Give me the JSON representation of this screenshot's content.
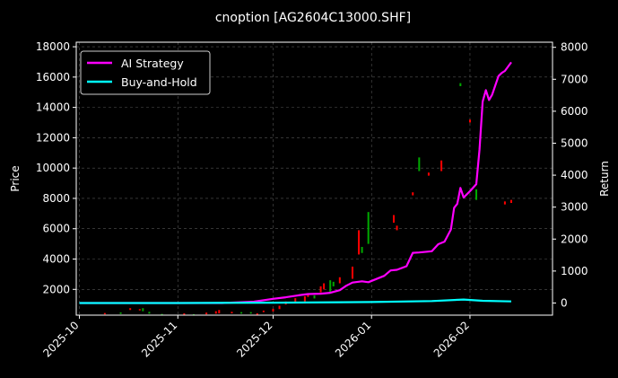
{
  "chart_data": {
    "type": "line",
    "title": "cnoption [AG2604C13000.SHF]",
    "ylabel_left": "Price",
    "ylabel_right": "Return",
    "x_ticks": [
      "2025-10",
      "2025-11",
      "2025-12",
      "2026-01",
      "2026-02"
    ],
    "x_range": [
      "2025-09-30",
      "2026-02-27"
    ],
    "left_axis": {
      "ylim": [
        300,
        18300
      ],
      "ticks": [
        2000,
        4000,
        6000,
        8000,
        10000,
        12000,
        14000,
        16000,
        18000
      ]
    },
    "right_axis": {
      "ylim": [
        -380,
        8160
      ],
      "ticks": [
        0,
        1000,
        2000,
        3000,
        4000,
        5000,
        6000,
        7000,
        8000
      ]
    },
    "grid": true,
    "legend_position": "top-left",
    "colors": {
      "background": "#000000",
      "ai_strategy": "#ff00ff",
      "buy_hold": "#00ffff",
      "up": "#ff0000",
      "down": "#00aa00"
    },
    "series": [
      {
        "name": "AI Strategy",
        "axis": "right",
        "points": [
          [
            "2025-10-01",
            0
          ],
          [
            "2025-10-15",
            0
          ],
          [
            "2025-11-01",
            0
          ],
          [
            "2025-11-15",
            0
          ],
          [
            "2025-11-25",
            40
          ],
          [
            "2025-12-01",
            130
          ],
          [
            "2025-12-05",
            180
          ],
          [
            "2025-12-09",
            240
          ],
          [
            "2025-12-12",
            280
          ],
          [
            "2025-12-16",
            290
          ],
          [
            "2025-12-19",
            320
          ],
          [
            "2025-12-22",
            400
          ],
          [
            "2025-12-24",
            540
          ],
          [
            "2025-12-26",
            640
          ],
          [
            "2025-12-29",
            680
          ],
          [
            "2025-12-31",
            650
          ],
          [
            "2026-01-05",
            850
          ],
          [
            "2026-01-07",
            1020
          ],
          [
            "2026-01-09",
            1040
          ],
          [
            "2026-01-12",
            1150
          ],
          [
            "2026-01-14",
            1570
          ],
          [
            "2026-01-16",
            1580
          ],
          [
            "2026-01-20",
            1620
          ],
          [
            "2026-01-22",
            1840
          ],
          [
            "2026-01-24",
            1920
          ],
          [
            "2026-01-26",
            2300
          ],
          [
            "2026-01-27",
            2980
          ],
          [
            "2026-01-28",
            3100
          ],
          [
            "2026-01-29",
            3600
          ],
          [
            "2026-01-30",
            3300
          ],
          [
            "2026-02-01",
            3500
          ],
          [
            "2026-02-03",
            3720
          ],
          [
            "2026-02-04",
            4800
          ],
          [
            "2026-02-05",
            6300
          ],
          [
            "2026-02-06",
            6660
          ],
          [
            "2026-02-07",
            6350
          ],
          [
            "2026-02-08",
            6520
          ],
          [
            "2026-02-10",
            7100
          ],
          [
            "2026-02-11",
            7200
          ],
          [
            "2026-02-12",
            7260
          ],
          [
            "2026-02-14",
            7530
          ]
        ]
      },
      {
        "name": "Buy-and-Hold",
        "axis": "right",
        "points": [
          [
            "2025-10-01",
            0
          ],
          [
            "2025-11-01",
            0
          ],
          [
            "2025-12-01",
            10
          ],
          [
            "2026-01-01",
            30
          ],
          [
            "2026-01-20",
            60
          ],
          [
            "2026-01-30",
            110
          ],
          [
            "2026-02-05",
            70
          ],
          [
            "2026-02-14",
            50
          ]
        ]
      }
    ],
    "candles": [
      [
        "2025-10-09",
        360,
        440,
        "up"
      ],
      [
        "2025-10-14",
        380,
        480,
        "down"
      ],
      [
        "2025-10-17",
        640,
        760,
        "up"
      ],
      [
        "2025-10-20",
        620,
        700,
        "up"
      ],
      [
        "2025-10-21",
        560,
        760,
        "down"
      ],
      [
        "2025-10-23",
        400,
        520,
        "down"
      ],
      [
        "2025-10-27",
        340,
        380,
        "down"
      ],
      [
        "2025-11-03",
        340,
        420,
        "up"
      ],
      [
        "2025-11-06",
        300,
        360,
        "down"
      ],
      [
        "2025-11-10",
        350,
        470,
        "up"
      ],
      [
        "2025-11-13",
        400,
        560,
        "up"
      ],
      [
        "2025-11-14",
        420,
        640,
        "up"
      ],
      [
        "2025-11-18",
        420,
        520,
        "up"
      ],
      [
        "2025-11-21",
        400,
        500,
        "down"
      ],
      [
        "2025-11-24",
        400,
        500,
        "down"
      ],
      [
        "2025-11-26",
        320,
        420,
        "up"
      ],
      [
        "2025-11-28",
        500,
        600,
        "up"
      ],
      [
        "2025-12-01",
        540,
        720,
        "up"
      ],
      [
        "2025-12-03",
        700,
        920,
        "up"
      ],
      [
        "2025-12-05",
        1000,
        1200,
        "up"
      ],
      [
        "2025-12-08",
        1100,
        1420,
        "up"
      ],
      [
        "2025-12-11",
        1200,
        1550,
        "up"
      ],
      [
        "2025-12-12",
        1500,
        1750,
        "up"
      ],
      [
        "2025-12-14",
        1400,
        1600,
        "down"
      ],
      [
        "2025-12-16",
        1800,
        2200,
        "up"
      ],
      [
        "2025-12-17",
        2000,
        2400,
        "up"
      ],
      [
        "2025-12-19",
        1800,
        2600,
        "down"
      ],
      [
        "2025-12-20",
        2200,
        2500,
        "down"
      ],
      [
        "2025-12-22",
        2400,
        2800,
        "up"
      ],
      [
        "2025-12-26",
        2700,
        3500,
        "up"
      ],
      [
        "2025-12-28",
        4300,
        5900,
        "up"
      ],
      [
        "2025-12-29",
        4400,
        4800,
        "down"
      ],
      [
        "2025-12-31",
        5000,
        7100,
        "down"
      ],
      [
        "2026-01-08",
        6400,
        6900,
        "up"
      ],
      [
        "2026-01-09",
        5900,
        6200,
        "up"
      ],
      [
        "2026-01-14",
        8200,
        8400,
        "up"
      ],
      [
        "2026-01-16",
        9800,
        10700,
        "down"
      ],
      [
        "2026-01-19",
        9500,
        9700,
        "up"
      ],
      [
        "2026-01-23",
        9800,
        10500,
        "up"
      ],
      [
        "2026-01-29",
        15400,
        15600,
        "down"
      ],
      [
        "2026-02-01",
        13000,
        13200,
        "up"
      ],
      [
        "2026-02-03",
        7900,
        8600,
        "down"
      ],
      [
        "2026-02-12",
        7600,
        7800,
        "up"
      ],
      [
        "2026-02-14",
        7700,
        7900,
        "up"
      ]
    ]
  }
}
